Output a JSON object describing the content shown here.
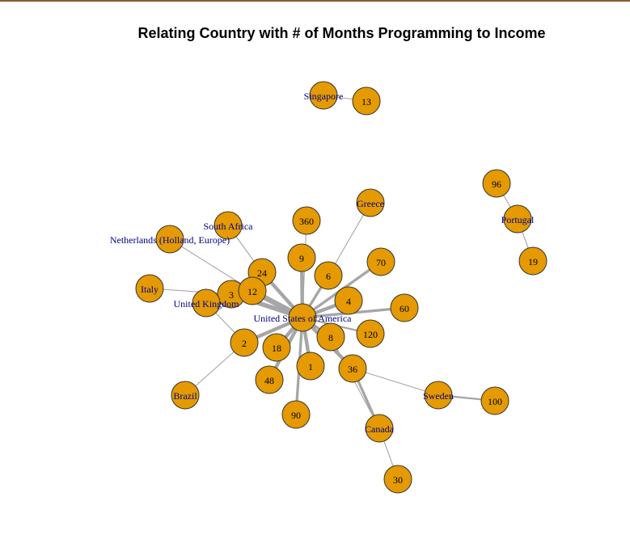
{
  "title": "Relating Country with # of Months Programming to Income",
  "colors": {
    "node_fill": "#e49a00",
    "edge": "#a6a6a6",
    "country_label": "#00008b",
    "number_label": "#000000"
  },
  "nodes": [
    {
      "id": "Singapore",
      "type": "country"
    },
    {
      "id": "13",
      "type": "number"
    },
    {
      "id": "96",
      "type": "number"
    },
    {
      "id": "Portugal",
      "type": "country"
    },
    {
      "id": "19",
      "type": "number"
    },
    {
      "id": "Greece",
      "type": "country"
    },
    {
      "id": "360",
      "type": "number"
    },
    {
      "id": "South Africa",
      "type": "country"
    },
    {
      "id": "Netherlands (Holland, Europe)",
      "type": "country"
    },
    {
      "id": "9",
      "type": "number"
    },
    {
      "id": "70",
      "type": "number"
    },
    {
      "id": "24",
      "type": "number"
    },
    {
      "id": "6",
      "type": "number"
    },
    {
      "id": "Italy",
      "type": "country"
    },
    {
      "id": "3",
      "type": "number"
    },
    {
      "id": "12",
      "type": "number"
    },
    {
      "id": "United Kingdom",
      "type": "country"
    },
    {
      "id": "4",
      "type": "number"
    },
    {
      "id": "60",
      "type": "number"
    },
    {
      "id": "United States of America",
      "type": "country"
    },
    {
      "id": "8",
      "type": "number"
    },
    {
      "id": "120",
      "type": "number"
    },
    {
      "id": "2",
      "type": "number"
    },
    {
      "id": "18",
      "type": "number"
    },
    {
      "id": "1",
      "type": "number"
    },
    {
      "id": "36",
      "type": "number"
    },
    {
      "id": "48",
      "type": "number"
    },
    {
      "id": "Brazil",
      "type": "country"
    },
    {
      "id": "Sweden",
      "type": "country"
    },
    {
      "id": "100",
      "type": "number"
    },
    {
      "id": "90",
      "type": "number"
    },
    {
      "id": "Canada",
      "type": "country"
    },
    {
      "id": "30",
      "type": "number"
    }
  ],
  "edges": [
    {
      "source": "Singapore",
      "target": "13",
      "weight": 1
    },
    {
      "source": "Portugal",
      "target": "96",
      "weight": 1
    },
    {
      "source": "Portugal",
      "target": "19",
      "weight": 1
    },
    {
      "source": "Sweden",
      "target": "100",
      "weight": 2
    },
    {
      "source": "Sweden",
      "target": "36",
      "weight": 1
    },
    {
      "source": "Canada",
      "target": "36",
      "weight": 3
    },
    {
      "source": "Canada",
      "target": "30",
      "weight": 1
    },
    {
      "source": "Canada",
      "target": "8",
      "weight": 1
    },
    {
      "source": "Greece",
      "target": "6",
      "weight": 1
    },
    {
      "source": "South Africa",
      "target": "24",
      "weight": 1
    },
    {
      "source": "Netherlands (Holland, Europe)",
      "target": "12",
      "weight": 1
    },
    {
      "source": "Italy",
      "target": "3",
      "weight": 1
    },
    {
      "source": "United Kingdom",
      "target": "3",
      "weight": 2
    },
    {
      "source": "United Kingdom",
      "target": "12",
      "weight": 2
    },
    {
      "source": "United Kingdom",
      "target": "2",
      "weight": 1
    },
    {
      "source": "Brazil",
      "target": "2",
      "weight": 1
    },
    {
      "source": "United States of America",
      "target": "9",
      "weight": 4
    },
    {
      "source": "United States of America",
      "target": "70",
      "weight": 3
    },
    {
      "source": "United States of America",
      "target": "24",
      "weight": 4
    },
    {
      "source": "United States of America",
      "target": "6",
      "weight": 3
    },
    {
      "source": "United States of America",
      "target": "3",
      "weight": 5
    },
    {
      "source": "United States of America",
      "target": "12",
      "weight": 6
    },
    {
      "source": "United States of America",
      "target": "4",
      "weight": 4
    },
    {
      "source": "United States of America",
      "target": "60",
      "weight": 3
    },
    {
      "source": "United States of America",
      "target": "8",
      "weight": 3
    },
    {
      "source": "United States of America",
      "target": "120",
      "weight": 2
    },
    {
      "source": "United States of America",
      "target": "2",
      "weight": 4
    },
    {
      "source": "United States of America",
      "target": "18",
      "weight": 4
    },
    {
      "source": "United States of America",
      "target": "1",
      "weight": 4
    },
    {
      "source": "United States of America",
      "target": "36",
      "weight": 4
    },
    {
      "source": "United States of America",
      "target": "48",
      "weight": 4
    },
    {
      "source": "United States of America",
      "target": "90",
      "weight": 3
    },
    {
      "source": "United States of America",
      "target": "360",
      "weight": 1
    }
  ]
}
